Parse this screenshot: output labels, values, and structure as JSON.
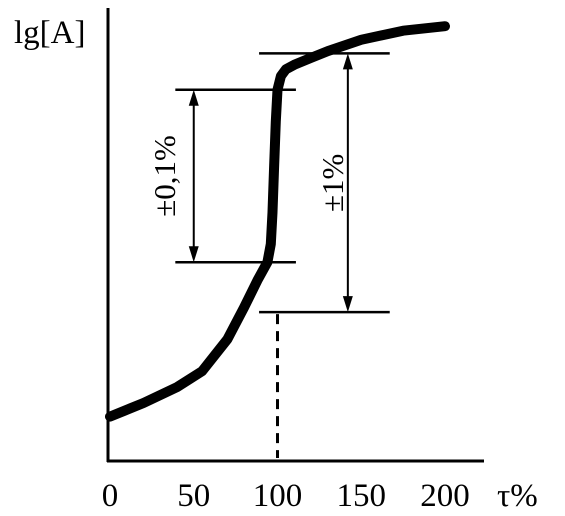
{
  "chart_data": {
    "type": "line",
    "ylabel": "lg[A]",
    "xlabel": "τ%",
    "xlim": [
      0,
      200
    ],
    "x_ticks": [
      "0",
      "50",
      "100",
      "150",
      "200"
    ],
    "series": [
      {
        "points": [
          [
            0,
            0.1
          ],
          [
            20,
            0.13
          ],
          [
            40,
            0.165
          ],
          [
            55,
            0.2
          ],
          [
            70,
            0.27
          ],
          [
            80,
            0.34
          ],
          [
            88,
            0.4
          ],
          [
            94,
            0.44
          ],
          [
            96,
            0.48
          ],
          [
            97,
            0.55
          ],
          [
            98,
            0.65
          ],
          [
            99,
            0.75
          ],
          [
            100,
            0.82
          ],
          [
            102,
            0.85
          ],
          [
            105,
            0.865
          ],
          [
            110,
            0.875
          ],
          [
            120,
            0.89
          ],
          [
            130,
            0.905
          ],
          [
            150,
            0.93
          ],
          [
            175,
            0.95
          ],
          [
            200,
            0.96
          ]
        ]
      }
    ],
    "annotations": [
      {
        "text": "±0,1%",
        "level_low": 0.44,
        "level_high": 0.82,
        "x_from": 39,
        "x_to": 111
      },
      {
        "text": "±1%",
        "level_low": 0.33,
        "level_high": 0.9,
        "x_from": 89,
        "x_to": 167
      }
    ],
    "reference_line_x": 100,
    "ylim": [
      0,
      1
    ]
  },
  "colors": {
    "ink": "#000000",
    "background": "#ffffff"
  }
}
